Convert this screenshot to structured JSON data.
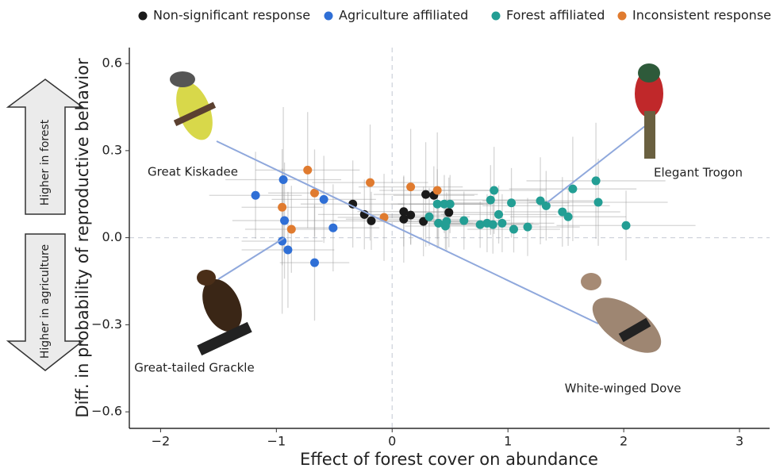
{
  "chart_data": {
    "type": "scatter",
    "xlabel": "Effect of forest cover on abundance",
    "ylabel": "Diff. in probability of reproductive behavior",
    "xlim": [
      -2.27,
      3.26
    ],
    "ylim": [
      -0.657,
      0.655
    ],
    "xticks": [
      {
        "value": -2,
        "label": "−2"
      },
      {
        "value": -1,
        "label": "−1"
      },
      0,
      1,
      2,
      3
    ],
    "yticks": [
      {
        "value": -0.6,
        "label": "−0.6"
      },
      {
        "value": -0.3,
        "label": "−0.3"
      },
      {
        "value": 0,
        "label": "0.0"
      },
      0.3,
      0.6
    ],
    "arrows": [
      "Higher in forest",
      "Higher in agriculture"
    ],
    "birds": [
      "Great Kiskadee",
      "Elegant Trogon",
      "Great-tailed Grackle",
      "White-winged Dove"
    ],
    "series": [
      {
        "name": "Non-significant response",
        "color": "#1a1a1a",
        "x": [
          -0.34,
          -0.24,
          -0.18,
          0.1,
          0.1,
          0.16,
          0.27,
          0.29,
          0.36,
          0.49
        ],
        "values": [
          0.116,
          0.08,
          0.058,
          0.09,
          0.064,
          0.078,
          0.056,
          0.149,
          0.146,
          0.087
        ],
        "xerr": [
          0.45,
          0.4,
          0.35,
          0.4,
          0.5,
          0.35,
          0.4,
          0.45,
          0.35,
          0.4
        ],
        "yerr": [
          0.15,
          0.12,
          0.1,
          0.12,
          0.15,
          0.1,
          0.12,
          0.18,
          0.1,
          0.12
        ]
      },
      {
        "name": "Agriculture affiliated",
        "color": "#2f6fd6",
        "x": [
          -1.18,
          -0.94,
          -0.93,
          -0.95,
          -0.9,
          -0.59,
          -0.51,
          -0.67
        ],
        "values": [
          0.146,
          0.2,
          0.059,
          -0.012,
          -0.042,
          0.132,
          0.034,
          -0.086
        ],
        "xerr": [
          0.4,
          0.5,
          0.45,
          0.35,
          0.4,
          0.45,
          0.4,
          0.3
        ],
        "yerr": [
          0.15,
          0.25,
          0.2,
          0.25,
          0.2,
          0.15,
          0.15,
          0.2
        ]
      },
      {
        "name": "Forest affiliated",
        "color": "#239e94",
        "x": [
          0.32,
          0.39,
          0.45,
          0.5,
          0.4,
          0.46,
          0.47,
          0.62,
          0.76,
          0.82,
          0.85,
          0.88,
          0.92,
          0.87,
          0.95,
          1.03,
          1.05,
          1.17,
          1.28,
          1.33,
          1.47,
          1.52,
          1.56,
          1.76,
          1.78,
          2.02
        ],
        "values": [
          0.072,
          0.116,
          0.116,
          0.116,
          0.05,
          0.04,
          0.056,
          0.059,
          0.045,
          0.05,
          0.13,
          0.163,
          0.08,
          0.045,
          0.05,
          0.12,
          0.029,
          0.037,
          0.127,
          0.11,
          0.089,
          0.072,
          0.168,
          0.196,
          0.122,
          0.042
        ],
        "xerr": [
          0.35,
          0.4,
          0.4,
          0.35,
          0.3,
          0.35,
          0.4,
          0.4,
          0.45,
          0.4,
          0.4,
          0.45,
          0.5,
          0.4,
          0.45,
          0.5,
          0.4,
          0.45,
          0.5,
          0.55,
          0.5,
          0.5,
          0.55,
          0.6,
          0.6,
          0.6
        ],
        "yerr": [
          0.1,
          0.12,
          0.1,
          0.1,
          0.08,
          0.08,
          0.1,
          0.1,
          0.08,
          0.1,
          0.12,
          0.15,
          0.1,
          0.1,
          0.1,
          0.12,
          0.08,
          0.1,
          0.15,
          0.12,
          0.12,
          0.1,
          0.18,
          0.2,
          0.15,
          0.12
        ]
      },
      {
        "name": "Inconsistent response",
        "color": "#e07b2f",
        "x": [
          -0.73,
          -0.67,
          -0.95,
          -0.87,
          -0.19,
          -0.07,
          0.16,
          0.39
        ],
        "values": [
          0.233,
          0.154,
          0.105,
          0.029,
          0.19,
          0.07,
          0.175,
          0.163
        ],
        "xerr": [
          0.45,
          0.4,
          0.35,
          0.4,
          0.5,
          0.4,
          0.45,
          0.5
        ],
        "yerr": [
          0.2,
          0.15,
          0.2,
          0.15,
          0.2,
          0.15,
          0.2,
          0.2
        ]
      }
    ]
  }
}
